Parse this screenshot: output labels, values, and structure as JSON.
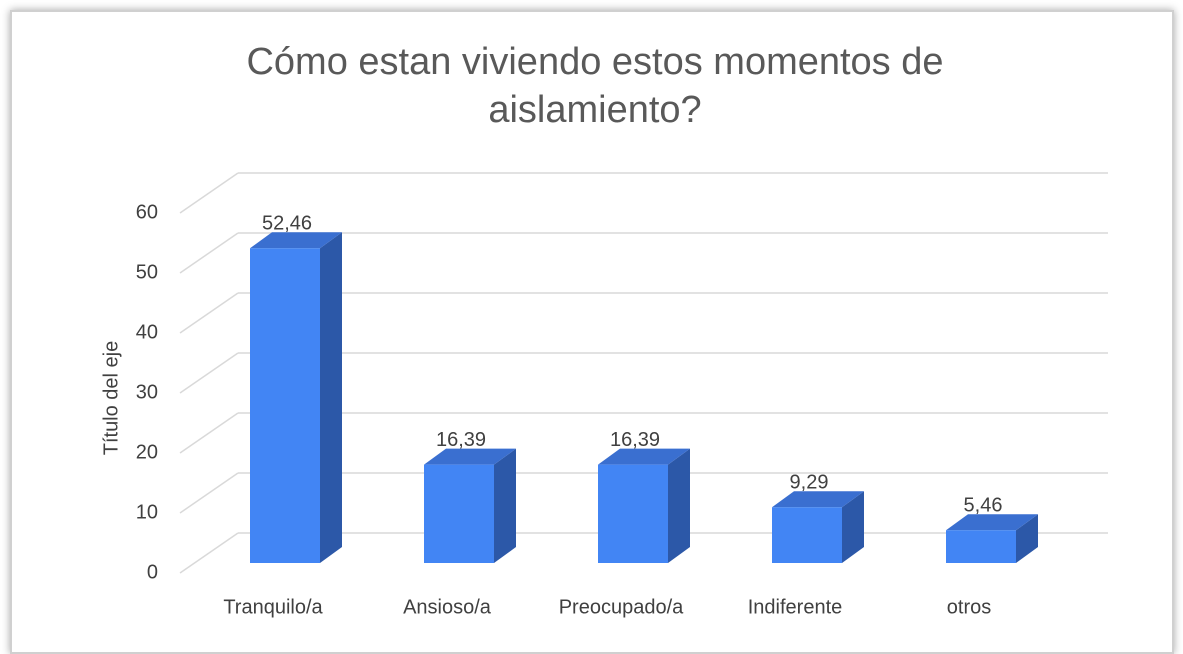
{
  "chart_data": {
    "type": "bar3d",
    "title": "Cómo estan viviendo estos momentos de aislamiento?",
    "y_axis_label": "Título del eje",
    "categories": [
      "Tranquilo/a",
      "Ansioso/a",
      "Preocupado/a",
      "Indiferente",
      "otros"
    ],
    "values": [
      52.46,
      16.39,
      16.39,
      9.29,
      5.46
    ],
    "value_labels": [
      "52,46",
      "16,39",
      "16,39",
      "9,29",
      "5,46"
    ],
    "color": "#4285f4",
    "ylim": [
      0,
      60
    ],
    "yticks": [
      0,
      10,
      20,
      30,
      40,
      50,
      60
    ],
    "grid": true
  }
}
